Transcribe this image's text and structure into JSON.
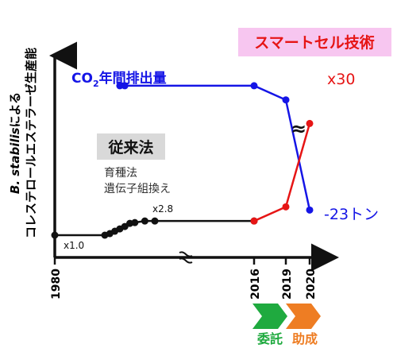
{
  "chart_data": {
    "type": "line",
    "ylabel_line1": "B. stabilis",
    "ylabel_line1_suffix": "による",
    "ylabel_line2": "コレステロールエステラーゼ生産能",
    "x_ticks": [
      "1980",
      "2016",
      "2019",
      "2020"
    ],
    "break_symbol": "≈",
    "series": [
      {
        "name": "CO₂年間排出量",
        "name_prefix": "CO",
        "name_sub": "2",
        "name_suffix": "年間排出量",
        "color": "#1515e6",
        "points": [
          {
            "x": 1993,
            "y": 0.95
          },
          {
            "x": 1994,
            "y": 0.95
          },
          {
            "x": 2016,
            "y": 0.95
          },
          {
            "x": 2019,
            "y": 0.86
          },
          {
            "x": 2020,
            "y": 0.16
          }
        ],
        "end_label": "-23トン"
      },
      {
        "name": "従来法",
        "color": "#111111",
        "points": [
          {
            "x": 1980,
            "y": 0.0
          },
          {
            "x": 1990,
            "y": 0.0
          },
          {
            "x": 1991,
            "y": 0.01
          },
          {
            "x": 1992,
            "y": 0.025
          },
          {
            "x": 1993,
            "y": 0.04
          },
          {
            "x": 1994,
            "y": 0.055
          },
          {
            "x": 1995,
            "y": 0.075
          },
          {
            "x": 1996,
            "y": 0.08
          },
          {
            "x": 1998,
            "y": 0.09
          },
          {
            "x": 2000,
            "y": 0.09
          },
          {
            "x": 2016,
            "y": 0.09
          }
        ],
        "start_label": "x1.0",
        "mid_label": "x2.8"
      },
      {
        "name": "スマートセル技術",
        "color": "#e61515",
        "points": [
          {
            "x": 2016,
            "y": 0.09
          },
          {
            "x": 2019,
            "y": 0.18
          },
          {
            "x": 2020,
            "y": 0.71
          }
        ],
        "end_label": "x30"
      }
    ],
    "conventional_box": {
      "title": "従来法",
      "lines": [
        "育種法",
        "遺伝子組換え"
      ]
    },
    "legend_box": {
      "title": "スマートセル技術",
      "background": "#f7c6f0"
    },
    "arrows": [
      {
        "label": "委託",
        "color": "#1faa3f"
      },
      {
        "label": "助成",
        "color": "#ee7d23"
      }
    ]
  }
}
